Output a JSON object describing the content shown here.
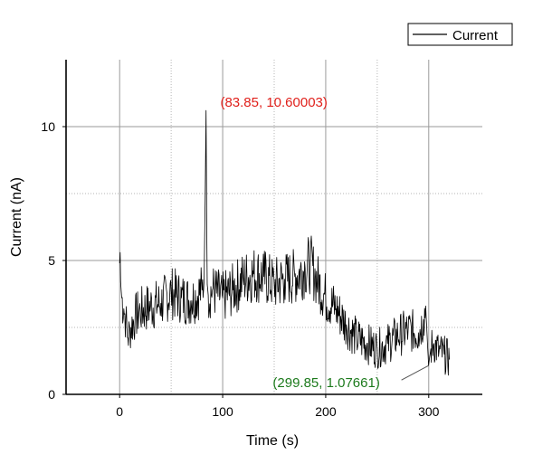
{
  "chart_data": {
    "type": "line",
    "title": "",
    "xlabel": "Time (s)",
    "ylabel": "Current (nA)",
    "xlim": [
      -52,
      352
    ],
    "ylim": [
      0,
      12.5
    ],
    "x_ticks": [
      0,
      100,
      200,
      300
    ],
    "x_tick_labels": [
      "0",
      "100",
      "200",
      "300"
    ],
    "y_ticks": [
      0,
      5,
      10
    ],
    "y_tick_labels": [
      "0",
      "5",
      "10"
    ],
    "x_minor_gridlines": [
      50,
      150,
      250
    ],
    "y_minor_gridlines": [
      2.5,
      7.5
    ],
    "grid": true,
    "legend": {
      "position": "top-right",
      "entries": [
        "Current"
      ]
    },
    "series": [
      {
        "name": "Current",
        "color": "#000000",
        "x": [
          0,
          0.5,
          1,
          2,
          4,
          6,
          8,
          10,
          15,
          20,
          30,
          40,
          50,
          60,
          70,
          80,
          82,
          83,
          83.85,
          84.5,
          85,
          86,
          90,
          100,
          110,
          120,
          130,
          140,
          150,
          160,
          170,
          180,
          185,
          190,
          200,
          210,
          220,
          230,
          240,
          250,
          260,
          270,
          280,
          290,
          295,
          297,
          299.85,
          302,
          305,
          310,
          315,
          320
        ],
        "y": [
          4.9,
          5.3,
          4.2,
          3.6,
          3.2,
          2.8,
          2.1,
          2.4,
          2.9,
          3.1,
          3.3,
          3.4,
          3.8,
          3.6,
          3.5,
          3.9,
          4.3,
          7.2,
          10.60003,
          6.5,
          4.1,
          3.7,
          3.9,
          3.6,
          3.9,
          4.3,
          4.5,
          4.4,
          4.1,
          4.3,
          4.4,
          4.7,
          4.9,
          4.4,
          3.6,
          3.2,
          2.6,
          2.1,
          1.9,
          1.7,
          1.9,
          2.2,
          2.4,
          2.3,
          2.8,
          3.3,
          1.07661,
          1.7,
          1.9,
          1.6,
          1.5,
          1.3
        ]
      }
    ],
    "annotations": [
      {
        "text": "(83.85, 10.60003)",
        "x": 83.85,
        "y": 10.60003,
        "color": "#e0201b"
      },
      {
        "text": "(299.85, 1.07661)",
        "x": 299.85,
        "y": 1.07661,
        "color": "#1c7a1c"
      }
    ]
  }
}
